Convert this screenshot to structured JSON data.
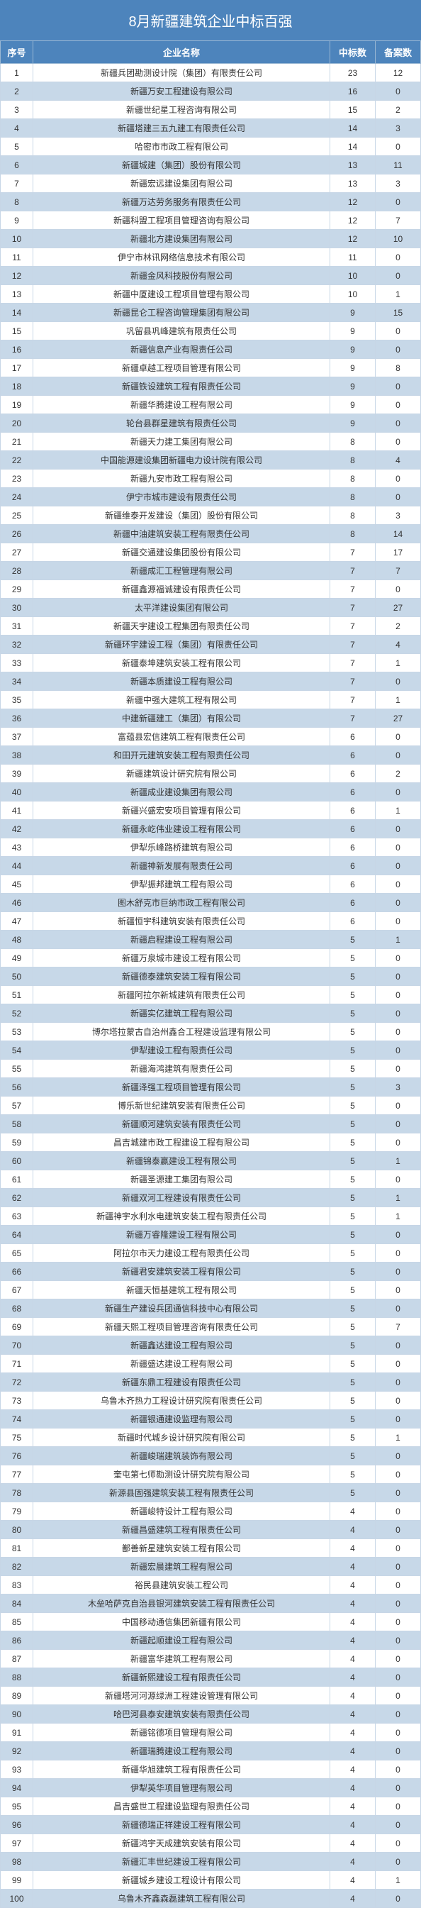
{
  "title": "8月新疆建筑企业中标百强",
  "headers": {
    "seq": "序号",
    "name": "企业名称",
    "bid": "中标数",
    "file": "备案数"
  },
  "rows": [
    {
      "seq": 1,
      "name": "新疆兵团勘测设计院（集团）有限责任公司",
      "bid": 23,
      "file": 12
    },
    {
      "seq": 2,
      "name": "新疆万安工程建设有限公司",
      "bid": 16,
      "file": 0
    },
    {
      "seq": 3,
      "name": "新疆世纪星工程咨询有限公司",
      "bid": 15,
      "file": 2
    },
    {
      "seq": 4,
      "name": "新疆塔建三五九建工有限责任公司",
      "bid": 14,
      "file": 3
    },
    {
      "seq": 5,
      "name": "哈密市市政工程有限公司",
      "bid": 14,
      "file": 0
    },
    {
      "seq": 6,
      "name": "新疆城建（集团）股份有限公司",
      "bid": 13,
      "file": 11
    },
    {
      "seq": 7,
      "name": "新疆宏远建设集团有限公司",
      "bid": 13,
      "file": 3
    },
    {
      "seq": 8,
      "name": "新疆万达劳务服务有限责任公司",
      "bid": 12,
      "file": 0
    },
    {
      "seq": 9,
      "name": "新疆科盟工程项目管理咨询有限公司",
      "bid": 12,
      "file": 7
    },
    {
      "seq": 10,
      "name": "新疆北方建设集团有限公司",
      "bid": 12,
      "file": 10
    },
    {
      "seq": 11,
      "name": "伊宁市林讯网络信息技术有限公司",
      "bid": 11,
      "file": 0
    },
    {
      "seq": 12,
      "name": "新疆金风科技股份有限公司",
      "bid": 10,
      "file": 0
    },
    {
      "seq": 13,
      "name": "新疆中厦建设工程项目管理有限公司",
      "bid": 10,
      "file": 1
    },
    {
      "seq": 14,
      "name": "新疆昆仑工程咨询管理集团有限公司",
      "bid": 9,
      "file": 15
    },
    {
      "seq": 15,
      "name": "巩留县巩峰建筑有限责任公司",
      "bid": 9,
      "file": 0
    },
    {
      "seq": 16,
      "name": "新疆信息产业有限责任公司",
      "bid": 9,
      "file": 0
    },
    {
      "seq": 17,
      "name": "新疆卓越工程项目管理有限公司",
      "bid": 9,
      "file": 8
    },
    {
      "seq": 18,
      "name": "新疆铁设建筑工程有限责任公司",
      "bid": 9,
      "file": 0
    },
    {
      "seq": 19,
      "name": "新疆华腾建设工程有限公司",
      "bid": 9,
      "file": 0
    },
    {
      "seq": 20,
      "name": "轮台县群星建筑有限责任公司",
      "bid": 9,
      "file": 0
    },
    {
      "seq": 21,
      "name": "新疆天力建工集团有限公司",
      "bid": 8,
      "file": 0
    },
    {
      "seq": 22,
      "name": "中国能源建设集团新疆电力设计院有限公司",
      "bid": 8,
      "file": 4
    },
    {
      "seq": 23,
      "name": "新疆九安市政工程有限公司",
      "bid": 8,
      "file": 0
    },
    {
      "seq": 24,
      "name": "伊宁市城市建设有限责任公司",
      "bid": 8,
      "file": 0
    },
    {
      "seq": 25,
      "name": "新疆维泰开发建设（集团）股份有限公司",
      "bid": 8,
      "file": 3
    },
    {
      "seq": 26,
      "name": "新疆中油建筑安装工程有限责任公司",
      "bid": 8,
      "file": 14
    },
    {
      "seq": 27,
      "name": "新疆交通建设集团股份有限公司",
      "bid": 7,
      "file": 17
    },
    {
      "seq": 28,
      "name": "新疆成汇工程管理有限公司",
      "bid": 7,
      "file": 7
    },
    {
      "seq": 29,
      "name": "新疆鑫源福诚建设有限责任公司",
      "bid": 7,
      "file": 0
    },
    {
      "seq": 30,
      "name": "太平洋建设集团有限公司",
      "bid": 7,
      "file": 27
    },
    {
      "seq": 31,
      "name": "新疆天宇建设工程集团有限责任公司",
      "bid": 7,
      "file": 2
    },
    {
      "seq": 32,
      "name": "新疆环宇建设工程（集团）有限责任公司",
      "bid": 7,
      "file": 4
    },
    {
      "seq": 33,
      "name": "新疆泰坤建筑安装工程有限公司",
      "bid": 7,
      "file": 1
    },
    {
      "seq": 34,
      "name": "新疆本质建设工程有限公司",
      "bid": 7,
      "file": 0
    },
    {
      "seq": 35,
      "name": "新疆中强大建筑工程有限公司",
      "bid": 7,
      "file": 1
    },
    {
      "seq": 36,
      "name": "中建新疆建工（集团）有限公司",
      "bid": 7,
      "file": 27
    },
    {
      "seq": 37,
      "name": "富蕴县宏信建筑工程有限责任公司",
      "bid": 6,
      "file": 0
    },
    {
      "seq": 38,
      "name": "和田开元建筑安装工程有限责任公司",
      "bid": 6,
      "file": 0
    },
    {
      "seq": 39,
      "name": "新疆建筑设计研究院有限公司",
      "bid": 6,
      "file": 2
    },
    {
      "seq": 40,
      "name": "新疆成业建设集团有限公司",
      "bid": 6,
      "file": 0
    },
    {
      "seq": 41,
      "name": "新疆兴盛宏安项目管理有限公司",
      "bid": 6,
      "file": 1
    },
    {
      "seq": 42,
      "name": "新疆永屹伟业建设工程有限公司",
      "bid": 6,
      "file": 0
    },
    {
      "seq": 43,
      "name": "伊犁乐峰路桥建筑有限公司",
      "bid": 6,
      "file": 0
    },
    {
      "seq": 44,
      "name": "新疆神新发展有限责任公司",
      "bid": 6,
      "file": 0
    },
    {
      "seq": 45,
      "name": "伊犁振邦建筑工程有限公司",
      "bid": 6,
      "file": 0
    },
    {
      "seq": 46,
      "name": "图木舒克市巨纳市政工程有限公司",
      "bid": 6,
      "file": 0
    },
    {
      "seq": 47,
      "name": "新疆恒宇科建筑安装有限责任公司",
      "bid": 6,
      "file": 0
    },
    {
      "seq": 48,
      "name": "新疆启程建设工程有限公司",
      "bid": 5,
      "file": 1
    },
    {
      "seq": 49,
      "name": "新疆万泉城市建设工程有限公司",
      "bid": 5,
      "file": 0
    },
    {
      "seq": 50,
      "name": "新疆德泰建筑安装工程有限公司",
      "bid": 5,
      "file": 0
    },
    {
      "seq": 51,
      "name": "新疆阿拉尔新城建筑有限责任公司",
      "bid": 5,
      "file": 0
    },
    {
      "seq": 52,
      "name": "新疆实亿建筑工程有限公司",
      "bid": 5,
      "file": 0
    },
    {
      "seq": 53,
      "name": "博尔塔拉蒙古自治州鑫合工程建设监理有限公司",
      "bid": 5,
      "file": 0
    },
    {
      "seq": 54,
      "name": "伊犁建设工程有限责任公司",
      "bid": 5,
      "file": 0
    },
    {
      "seq": 55,
      "name": "新疆海鸿建筑有限责任公司",
      "bid": 5,
      "file": 0
    },
    {
      "seq": 56,
      "name": "新疆泽强工程项目管理有限公司",
      "bid": 5,
      "file": 3
    },
    {
      "seq": 57,
      "name": "博乐新世纪建筑安装有限责任公司",
      "bid": 5,
      "file": 0
    },
    {
      "seq": 58,
      "name": "新疆顺河建筑安装有限责任公司",
      "bid": 5,
      "file": 0
    },
    {
      "seq": 59,
      "name": "昌吉城建市政工程建设工程有限公司",
      "bid": 5,
      "file": 0
    },
    {
      "seq": 60,
      "name": "新疆锦泰赢建设工程有限公司",
      "bid": 5,
      "file": 1
    },
    {
      "seq": 61,
      "name": "新疆圣源建工集团有限公司",
      "bid": 5,
      "file": 0
    },
    {
      "seq": 62,
      "name": "新疆双河工程建设有限责任公司",
      "bid": 5,
      "file": 1
    },
    {
      "seq": 63,
      "name": "新疆神宇水利水电建筑安装工程有限责任公司",
      "bid": 5,
      "file": 1
    },
    {
      "seq": 64,
      "name": "新疆万睿隆建设工程有限公司",
      "bid": 5,
      "file": 0
    },
    {
      "seq": 65,
      "name": "阿拉尔市天力建设工程有限责任公司",
      "bid": 5,
      "file": 0
    },
    {
      "seq": 66,
      "name": "新疆君安建筑安装工程有限公司",
      "bid": 5,
      "file": 0
    },
    {
      "seq": 67,
      "name": "新疆天恒基建筑工程有限公司",
      "bid": 5,
      "file": 0
    },
    {
      "seq": 68,
      "name": "新疆生产建设兵团通信科技中心有限公司",
      "bid": 5,
      "file": 0
    },
    {
      "seq": 69,
      "name": "新疆天熙工程项目管理咨询有限责任公司",
      "bid": 5,
      "file": 7
    },
    {
      "seq": 70,
      "name": "新疆鑫达建设工程有限公司",
      "bid": 5,
      "file": 0
    },
    {
      "seq": 71,
      "name": "新疆盛达建设工程有限公司",
      "bid": 5,
      "file": 0
    },
    {
      "seq": 72,
      "name": "新疆东鼎工程建设有限责任公司",
      "bid": 5,
      "file": 0
    },
    {
      "seq": 73,
      "name": "乌鲁木齐热力工程设计研究院有限责任公司",
      "bid": 5,
      "file": 0
    },
    {
      "seq": 74,
      "name": "新疆银通建设监理有限公司",
      "bid": 5,
      "file": 0
    },
    {
      "seq": 75,
      "name": "新疆时代城乡设计研究院有限公司",
      "bid": 5,
      "file": 1
    },
    {
      "seq": 76,
      "name": "新疆峻瑞建筑装饰有限公司",
      "bid": 5,
      "file": 0
    },
    {
      "seq": 77,
      "name": "奎屯第七师勘测设计研究院有限公司",
      "bid": 5,
      "file": 0
    },
    {
      "seq": 78,
      "name": "新源县固强建筑安装工程有限责任公司",
      "bid": 5,
      "file": 0
    },
    {
      "seq": 79,
      "name": "新疆峻特设计工程有限公司",
      "bid": 4,
      "file": 0
    },
    {
      "seq": 80,
      "name": "新疆昌盛建筑工程有限责任公司",
      "bid": 4,
      "file": 0
    },
    {
      "seq": 81,
      "name": "鄯善新星建筑安装工程有限公司",
      "bid": 4,
      "file": 0
    },
    {
      "seq": 82,
      "name": "新疆宏晨建筑工程有限公司",
      "bid": 4,
      "file": 0
    },
    {
      "seq": 83,
      "name": "裕民县建筑安装工程公司",
      "bid": 4,
      "file": 0
    },
    {
      "seq": 84,
      "name": "木垒哈萨克自治县银河建筑安装工程有限责任公司",
      "bid": 4,
      "file": 0
    },
    {
      "seq": 85,
      "name": "中国移动通信集团新疆有限公司",
      "bid": 4,
      "file": 0
    },
    {
      "seq": 86,
      "name": "新疆起顺建设工程有限公司",
      "bid": 4,
      "file": 0
    },
    {
      "seq": 87,
      "name": "新疆富华建筑工程有限公司",
      "bid": 4,
      "file": 0
    },
    {
      "seq": 88,
      "name": "新疆新熙建设工程有限责任公司",
      "bid": 4,
      "file": 0
    },
    {
      "seq": 89,
      "name": "新疆塔河河源绿洲工程建设管理有限公司",
      "bid": 4,
      "file": 0
    },
    {
      "seq": 90,
      "name": "哈巴河县泰安建筑安装有限责任公司",
      "bid": 4,
      "file": 0
    },
    {
      "seq": 91,
      "name": "新疆铭德项目管理有限公司",
      "bid": 4,
      "file": 0
    },
    {
      "seq": 92,
      "name": "新疆瑞腾建设工程有限公司",
      "bid": 4,
      "file": 0
    },
    {
      "seq": 93,
      "name": "新疆华旭建筑工程有限责任公司",
      "bid": 4,
      "file": 0
    },
    {
      "seq": 94,
      "name": "伊犁英华项目管理有限公司",
      "bid": 4,
      "file": 0
    },
    {
      "seq": 95,
      "name": "昌吉盛世工程建设监理有限责任公司",
      "bid": 4,
      "file": 0
    },
    {
      "seq": 96,
      "name": "新疆德瑞正祥建设工程有限公司",
      "bid": 4,
      "file": 0
    },
    {
      "seq": 97,
      "name": "新疆鸿宇天成建筑安装有限公司",
      "bid": 4,
      "file": 0
    },
    {
      "seq": 98,
      "name": "新疆汇丰世纪建设工程有限公司",
      "bid": 4,
      "file": 0
    },
    {
      "seq": 99,
      "name": "新疆城乡建设工程设计有限公司",
      "bid": 4,
      "file": 1
    },
    {
      "seq": 100,
      "name": "乌鲁木齐鑫森磊建筑工程有限公司",
      "bid": 4,
      "file": 0
    }
  ],
  "colors": {
    "headerBg": "#4d84bc",
    "evenRow": "#c7d8e8",
    "oddRow": "#ffffff"
  }
}
